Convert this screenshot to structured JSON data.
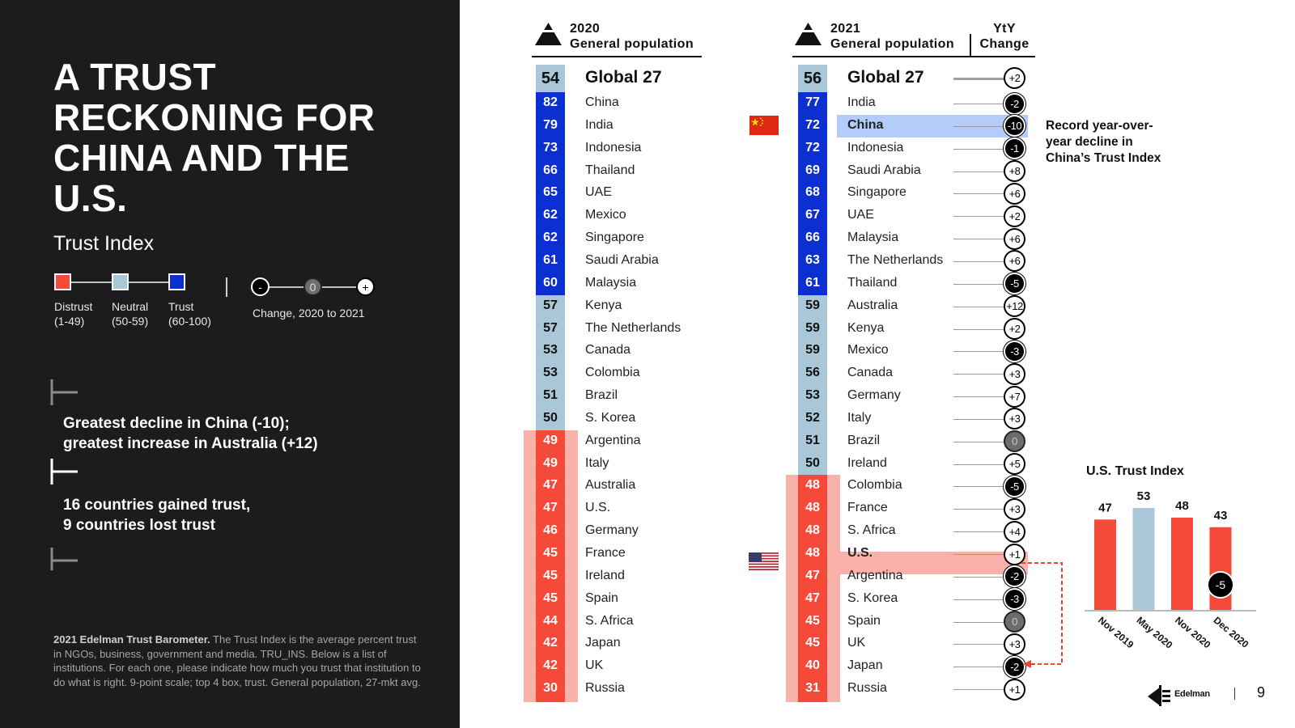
{
  "title": "A TRUST RECKONING FOR CHINA AND THE U.S.",
  "subtitle": "Trust Index",
  "legend": {
    "distrust": {
      "label": "Distrust\n(1-49)",
      "color": "#f5493a"
    },
    "neutral": {
      "label": "Neutral\n(50-59)",
      "color": "#a9c7d6"
    },
    "trust": {
      "label": "Trust\n(60-100)",
      "color": "#0c2fd1"
    },
    "change_label": "Change, 2020 to 2021",
    "change_symbols": [
      "-",
      "0",
      "+"
    ]
  },
  "callouts": [
    "Greatest decline in China (-10);\ngreatest increase in Australia (+12)",
    "16 countries gained trust,\n9 countries lost trust"
  ],
  "footnote": {
    "bold": "2021 Edelman Trust Barometer.",
    "text": " The Trust Index is the average percent trust in NGOs, business, government and media. TRU_INS. Below is a list of institutions. For each one, please indicate how much you trust that institution to do what is right. 9-point scale; top 4 box, trust. General population, 27-mkt avg."
  },
  "col2020": {
    "year": "2020",
    "label": "General population"
  },
  "col2021": {
    "year": "2021",
    "label": "General population"
  },
  "yty_label": "YtY\nChange",
  "china_callout": "Record year-over-\nyear decline in\nChina’s Trust Index",
  "us_chart_title": "U.S. Trust Index",
  "brand": "Edelman",
  "page_number": "9",
  "chart_data": [
    {
      "type": "table",
      "title": "2020 General population",
      "rows": [
        {
          "country": "Global 27",
          "score": 54
        },
        {
          "country": "China",
          "score": 82
        },
        {
          "country": "India",
          "score": 79
        },
        {
          "country": "Indonesia",
          "score": 73
        },
        {
          "country": "Thailand",
          "score": 66
        },
        {
          "country": "UAE",
          "score": 65
        },
        {
          "country": "Mexico",
          "score": 62
        },
        {
          "country": "Singapore",
          "score": 62
        },
        {
          "country": "Saudi Arabia",
          "score": 61
        },
        {
          "country": "Malaysia",
          "score": 60
        },
        {
          "country": "Kenya",
          "score": 57
        },
        {
          "country": "The Netherlands",
          "score": 57
        },
        {
          "country": "Canada",
          "score": 53
        },
        {
          "country": "Colombia",
          "score": 53
        },
        {
          "country": "Brazil",
          "score": 51
        },
        {
          "country": "S. Korea",
          "score": 50
        },
        {
          "country": "Argentina",
          "score": 49
        },
        {
          "country": "Italy",
          "score": 49
        },
        {
          "country": "Australia",
          "score": 47
        },
        {
          "country": "U.S.",
          "score": 47
        },
        {
          "country": "Germany",
          "score": 46
        },
        {
          "country": "France",
          "score": 45
        },
        {
          "country": "Ireland",
          "score": 45
        },
        {
          "country": "Spain",
          "score": 45
        },
        {
          "country": "S. Africa",
          "score": 44
        },
        {
          "country": "Japan",
          "score": 42
        },
        {
          "country": "UK",
          "score": 42
        },
        {
          "country": "Russia",
          "score": 30
        }
      ]
    },
    {
      "type": "table",
      "title": "2021 General population",
      "rows": [
        {
          "country": "Global 27",
          "score": 56,
          "change": "+2"
        },
        {
          "country": "India",
          "score": 77,
          "change": "-2"
        },
        {
          "country": "China",
          "score": 72,
          "change": "-10"
        },
        {
          "country": "Indonesia",
          "score": 72,
          "change": "-1"
        },
        {
          "country": "Saudi Arabia",
          "score": 69,
          "change": "+8"
        },
        {
          "country": "Singapore",
          "score": 68,
          "change": "+6"
        },
        {
          "country": "UAE",
          "score": 67,
          "change": "+2"
        },
        {
          "country": "Malaysia",
          "score": 66,
          "change": "+6"
        },
        {
          "country": "The Netherlands",
          "score": 63,
          "change": "+6"
        },
        {
          "country": "Thailand",
          "score": 61,
          "change": "-5"
        },
        {
          "country": "Australia",
          "score": 59,
          "change": "+12"
        },
        {
          "country": "Kenya",
          "score": 59,
          "change": "+2"
        },
        {
          "country": "Mexico",
          "score": 59,
          "change": "-3"
        },
        {
          "country": "Canada",
          "score": 56,
          "change": "+3"
        },
        {
          "country": "Germany",
          "score": 53,
          "change": "+7"
        },
        {
          "country": "Italy",
          "score": 52,
          "change": "+3"
        },
        {
          "country": "Brazil",
          "score": 51,
          "change": "0"
        },
        {
          "country": "Ireland",
          "score": 50,
          "change": "+5"
        },
        {
          "country": "Colombia",
          "score": 48,
          "change": "-5"
        },
        {
          "country": "France",
          "score": 48,
          "change": "+3"
        },
        {
          "country": "S. Africa",
          "score": 48,
          "change": "+4"
        },
        {
          "country": "U.S.",
          "score": 48,
          "change": "+1"
        },
        {
          "country": "Argentina",
          "score": 47,
          "change": "-2"
        },
        {
          "country": "S. Korea",
          "score": 47,
          "change": "-3"
        },
        {
          "country": "Spain",
          "score": 45,
          "change": "0"
        },
        {
          "country": "UK",
          "score": 45,
          "change": "+3"
        },
        {
          "country": "Japan",
          "score": 40,
          "change": "-2"
        },
        {
          "country": "Russia",
          "score": 31,
          "change": "+1"
        }
      ],
      "highlighted": [
        "China",
        "U.S."
      ]
    },
    {
      "type": "bar",
      "title": "U.S. Trust Index",
      "categories": [
        "Nov 2019",
        "May 2020",
        "Nov 2020",
        "Dec 2020"
      ],
      "values": [
        47,
        53,
        48,
        43
      ],
      "colors": [
        "#f5493a",
        "#a9c7d6",
        "#f5493a",
        "#f5493a"
      ],
      "annotation": {
        "category": "Dec 2020",
        "text": "-5"
      },
      "ylim": [
        0,
        60
      ]
    }
  ]
}
